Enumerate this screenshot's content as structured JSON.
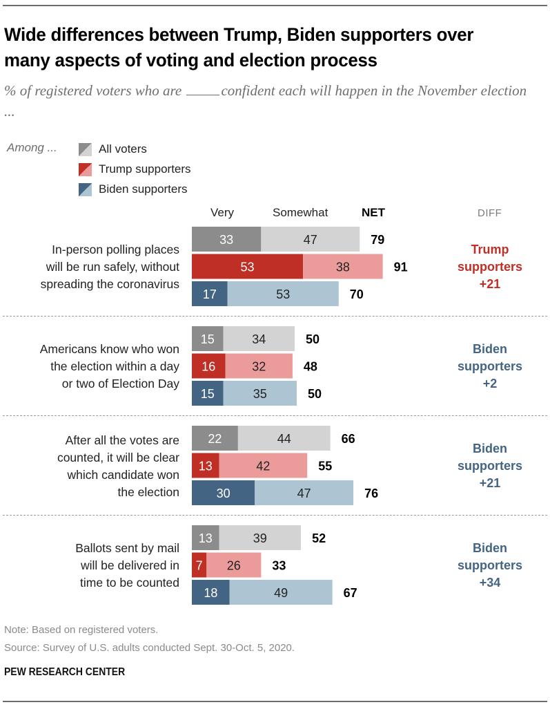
{
  "chart_data": {
    "type": "bar",
    "orientation": "horizontal",
    "stacked": true,
    "title": "Wide differences between Trump, Biden supporters over many aspects of voting and election process",
    "subtitle": "% of registered voters who are ____ confident each will happen in the November election ...",
    "legend": {
      "prefix": "Among ...",
      "placement": "top-left",
      "entries": [
        {
          "name": "All voters",
          "dark": "#8c8c8c",
          "light": "#d3d3d3"
        },
        {
          "name": "Trump supporters",
          "dark": "#bf2f25",
          "light": "#ec9b9b"
        },
        {
          "name": "Biden supporters",
          "dark": "#436483",
          "light": "#adc5d3"
        }
      ]
    },
    "column_headers": {
      "very": "Very",
      "somewhat": "Somewhat",
      "net": "NET",
      "diff": "DIFF"
    },
    "xlim": [
      0,
      100
    ],
    "categories": [
      "In-person polling places will be run safely, without spreading the coronavirus",
      "Americans know who won the election within a day or two of Election Day",
      "After all the votes are counted, it will be clear which candidate won the election",
      "Ballots sent by mail will be delivered in time to be counted"
    ],
    "groups": [
      {
        "label_lines": [
          "In-person polling places",
          "will be run safely, without",
          "spreading the coronavirus"
        ],
        "rows": [
          {
            "series": "All voters",
            "very": 33,
            "somewhat": 47,
            "net": 79
          },
          {
            "series": "Trump supporters",
            "very": 53,
            "somewhat": 38,
            "net": 91
          },
          {
            "series": "Biden supporters",
            "very": 17,
            "somewhat": 53,
            "net": 70
          }
        ],
        "diff": {
          "lines": [
            "Trump",
            "supporters",
            "+21"
          ],
          "favors": "Trump supporters",
          "value": 21
        }
      },
      {
        "label_lines": [
          "Americans know who won",
          "the election within a day",
          "or two of Election Day"
        ],
        "rows": [
          {
            "series": "All voters",
            "very": 15,
            "somewhat": 34,
            "net": 50
          },
          {
            "series": "Trump supporters",
            "very": 16,
            "somewhat": 32,
            "net": 48
          },
          {
            "series": "Biden supporters",
            "very": 15,
            "somewhat": 35,
            "net": 50
          }
        ],
        "diff": {
          "lines": [
            "Biden",
            "supporters",
            "+2"
          ],
          "favors": "Biden supporters",
          "value": 2
        }
      },
      {
        "label_lines": [
          "After all the votes are",
          "counted, it will be clear",
          "which candidate won",
          "the election"
        ],
        "rows": [
          {
            "series": "All voters",
            "very": 22,
            "somewhat": 44,
            "net": 66
          },
          {
            "series": "Trump supporters",
            "very": 13,
            "somewhat": 42,
            "net": 55
          },
          {
            "series": "Biden supporters",
            "very": 30,
            "somewhat": 47,
            "net": 76
          }
        ],
        "diff": {
          "lines": [
            "Biden",
            "supporters",
            "+21"
          ],
          "favors": "Biden supporters",
          "value": 21
        }
      },
      {
        "label_lines": [
          "Ballots sent by mail",
          "will be delivered in",
          "time to be counted"
        ],
        "rows": [
          {
            "series": "All voters",
            "very": 13,
            "somewhat": 39,
            "net": 52
          },
          {
            "series": "Trump supporters",
            "very": 7,
            "somewhat": 26,
            "net": 33
          },
          {
            "series": "Biden supporters",
            "very": 18,
            "somewhat": 49,
            "net": 67
          }
        ],
        "diff": {
          "lines": [
            "Biden",
            "supporters",
            "+34"
          ],
          "favors": "Biden supporters",
          "value": 34
        }
      }
    ]
  },
  "colors": {
    "trump_accent": "#bf2f25",
    "biden_accent": "#436483"
  },
  "footer": {
    "note": "Note: Based on registered voters.",
    "source": "Source: Survey of U.S. adults conducted Sept. 30-Oct. 5, 2020.",
    "brand": "PEW RESEARCH CENTER"
  }
}
